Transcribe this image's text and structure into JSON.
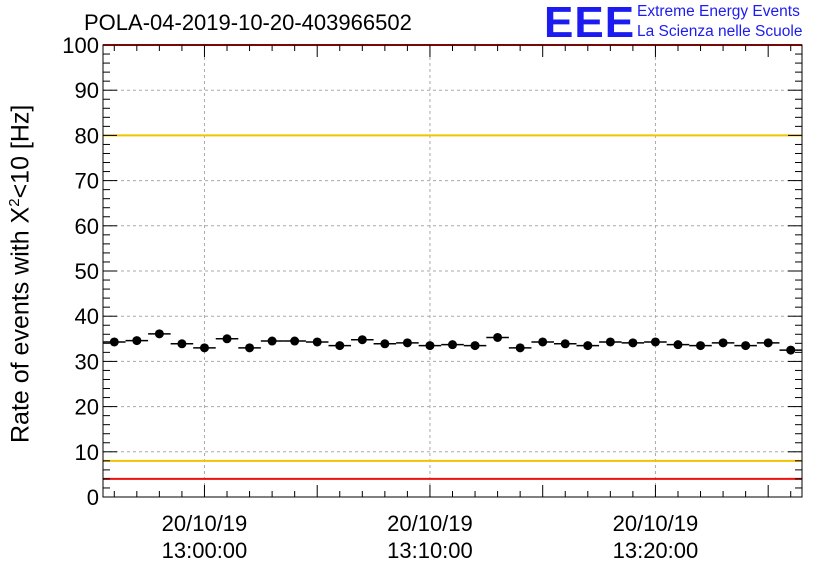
{
  "chart_data": {
    "type": "scatter",
    "title": "POLA-04-2019-10-20-403966502",
    "ylabel_parts": [
      "Rate of events with X",
      "2",
      "<10 [Hz]"
    ],
    "xlabel": "",
    "ylim": [
      0,
      100
    ],
    "yticks": [
      "0",
      "10",
      "20",
      "30",
      "40",
      "50",
      "60",
      "70",
      "80",
      "90",
      "100"
    ],
    "xlim_minutes": [
      -4.5,
      26.5
    ],
    "xticks": [
      {
        "t": 0,
        "date": "20/10/19",
        "time": "13:00:00"
      },
      {
        "t": 10,
        "date": "20/10/19",
        "time": "13:10:00"
      },
      {
        "t": 20,
        "date": "20/10/19",
        "time": "13:20:00"
      }
    ],
    "x_minutes": [
      -4,
      -3,
      -2,
      -1,
      0,
      1,
      2,
      3,
      4,
      5,
      6,
      7,
      8,
      9,
      10,
      11,
      12,
      13,
      14,
      15,
      16,
      17,
      18,
      19,
      20,
      21,
      22,
      23,
      24,
      25,
      26
    ],
    "values": [
      34.3,
      34.6,
      36.1,
      33.9,
      33.0,
      35.0,
      33.0,
      34.5,
      34.5,
      34.3,
      33.5,
      34.8,
      33.9,
      34.1,
      33.5,
      33.7,
      33.5,
      35.3,
      33.0,
      34.3,
      33.9,
      33.5,
      34.3,
      34.1,
      34.3,
      33.7,
      33.5,
      34.1,
      33.5,
      34.1,
      32.5
    ],
    "reference_lines": [
      {
        "value": 100,
        "color": "#ee1111"
      },
      {
        "value": 80,
        "color": "#f2c300"
      },
      {
        "value": 8,
        "color": "#f2c300"
      },
      {
        "value": 4,
        "color": "#ee1111"
      }
    ],
    "grid": true,
    "marker_color": "#000000"
  },
  "logo": {
    "mark": "EEE",
    "line1": "Extreme Energy Events",
    "line2": "La Scienza nelle Scuole",
    "color": "#1c1cf0"
  }
}
